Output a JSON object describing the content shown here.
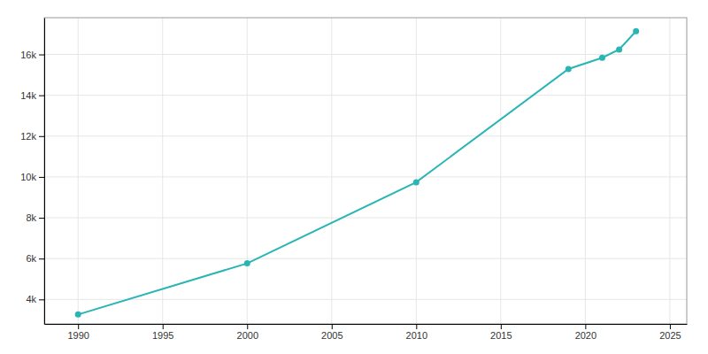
{
  "chart_data": {
    "type": "line",
    "x": [
      1990,
      2000,
      2010,
      2019,
      2021,
      2022,
      2023
    ],
    "values": [
      3261,
      5765,
      9741,
      15286,
      15839,
      16242,
      17140
    ],
    "color": "#2ab5b5",
    "marker": "circle",
    "xlim": [
      1988,
      2026
    ],
    "ylim": [
      2800,
      17800
    ],
    "xticks": [
      1990,
      1995,
      2000,
      2005,
      2010,
      2015,
      2020,
      2025
    ],
    "yticks": [
      {
        "value": 4000,
        "label": "4k"
      },
      {
        "value": 6000,
        "label": "6k"
      },
      {
        "value": 8000,
        "label": "8k"
      },
      {
        "value": 10000,
        "label": "10k"
      },
      {
        "value": 12000,
        "label": "12k"
      },
      {
        "value": 14000,
        "label": "14k"
      },
      {
        "value": 16000,
        "label": "16k"
      }
    ],
    "grid": true
  }
}
